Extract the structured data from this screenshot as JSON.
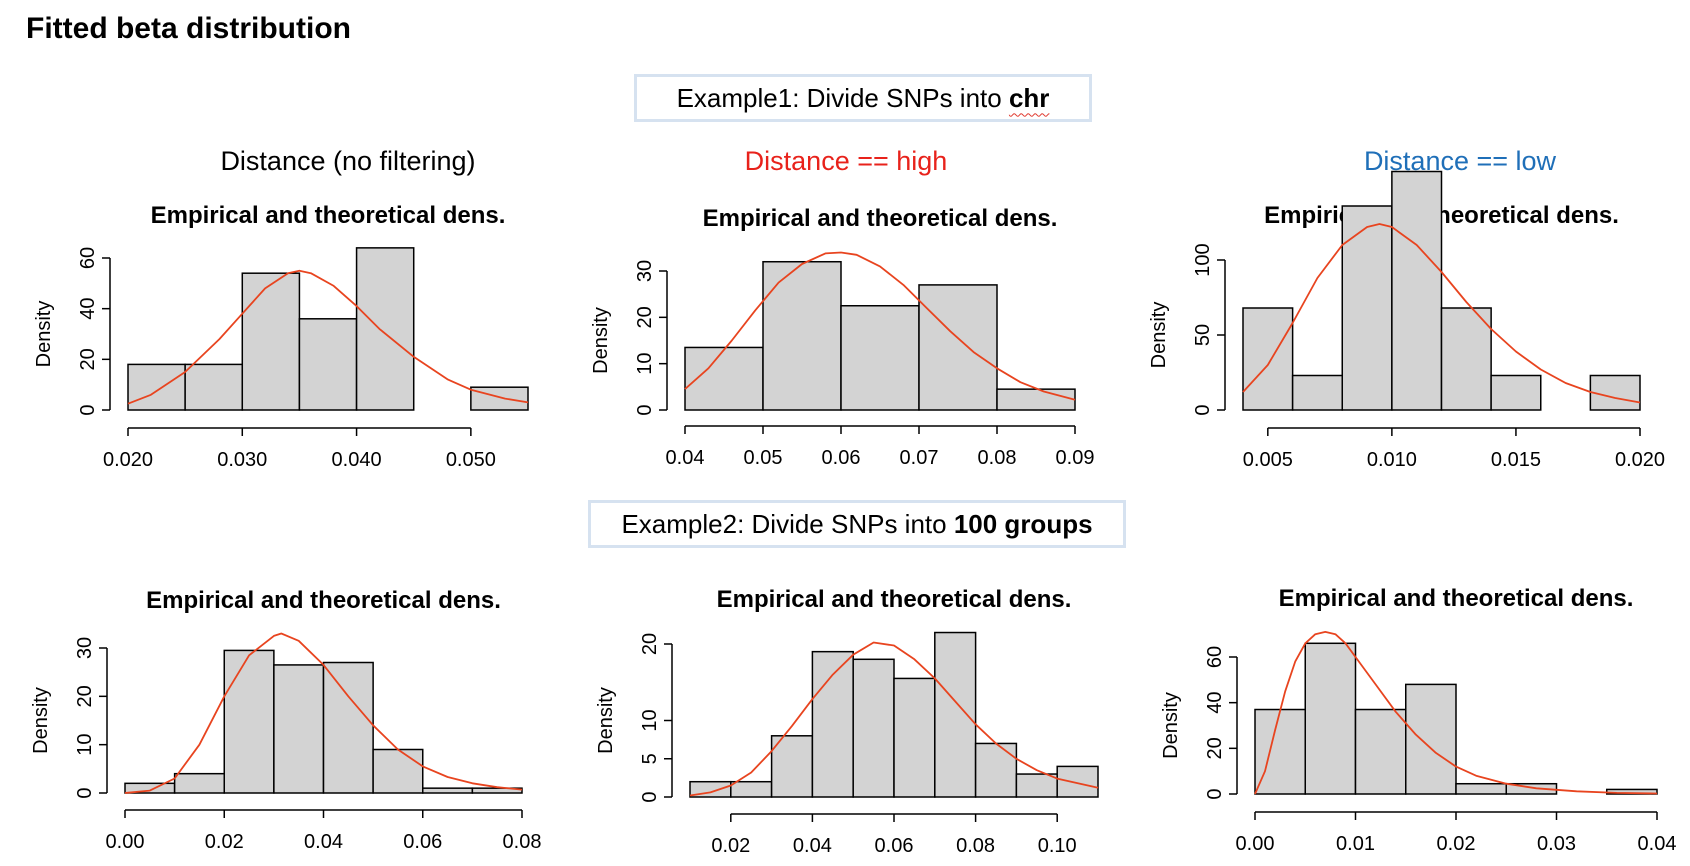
{
  "page": {
    "title": "Fitted beta distribution"
  },
  "example1": {
    "prefix": "Example1: Divide SNPs into ",
    "emphasis": "chr"
  },
  "example2": {
    "prefix": "Example2: Divide SNPs into ",
    "emphasis": "100 groups"
  },
  "columns": [
    {
      "label": "Distance (no filtering)",
      "color": "#000000"
    },
    {
      "label": "Distance == high",
      "color": "#e8221b"
    },
    {
      "label": "Distance == low",
      "color": "#1f6fb8"
    }
  ],
  "colors": {
    "bar_fill": "#d3d3d3",
    "bar_stroke": "#000000",
    "curve": "#e8441f"
  },
  "chart_data": [
    {
      "type": "bar",
      "title": "Empirical and theoretical dens.",
      "ylabel": "Density",
      "xlabel": "",
      "xlim": [
        0.02,
        0.055
      ],
      "ylim": [
        0,
        60
      ],
      "bins": [
        [
          0.02,
          0.025,
          18
        ],
        [
          0.025,
          0.03,
          18
        ],
        [
          0.03,
          0.035,
          54
        ],
        [
          0.035,
          0.04,
          36
        ],
        [
          0.04,
          0.045,
          64
        ],
        [
          0.045,
          0.05,
          0
        ],
        [
          0.05,
          0.055,
          9
        ]
      ],
      "xticks": [
        0.02,
        0.03,
        0.04,
        0.05
      ],
      "xtick_labels": [
        "0.020",
        "0.030",
        "0.040",
        "0.050"
      ],
      "yticks": [
        0,
        20,
        40,
        60
      ],
      "ytick_labels": [
        "0",
        "20",
        "40",
        "60"
      ],
      "curve": [
        [
          0.02,
          2.5
        ],
        [
          0.022,
          6
        ],
        [
          0.025,
          15
        ],
        [
          0.028,
          28
        ],
        [
          0.03,
          38
        ],
        [
          0.032,
          48
        ],
        [
          0.034,
          54
        ],
        [
          0.035,
          55
        ],
        [
          0.036,
          54
        ],
        [
          0.038,
          49
        ],
        [
          0.04,
          41
        ],
        [
          0.042,
          32
        ],
        [
          0.045,
          21
        ],
        [
          0.048,
          12
        ],
        [
          0.05,
          8
        ],
        [
          0.053,
          4.5
        ],
        [
          0.055,
          3
        ]
      ]
    },
    {
      "type": "bar",
      "title": "Empirical and theoretical dens.",
      "ylabel": "Density",
      "xlabel": "",
      "xlim": [
        0.04,
        0.09
      ],
      "ylim": [
        0,
        30
      ],
      "bins": [
        [
          0.04,
          0.05,
          13.5
        ],
        [
          0.05,
          0.06,
          32
        ],
        [
          0.06,
          0.07,
          22.5
        ],
        [
          0.07,
          0.08,
          27
        ],
        [
          0.08,
          0.09,
          4.5
        ]
      ],
      "xticks": [
        0.04,
        0.05,
        0.06,
        0.07,
        0.08,
        0.09
      ],
      "xtick_labels": [
        "0.04",
        "0.05",
        "0.06",
        "0.07",
        "0.08",
        "0.09"
      ],
      "yticks": [
        0,
        10,
        20,
        30
      ],
      "ytick_labels": [
        "0",
        "10",
        "20",
        "30"
      ],
      "curve": [
        [
          0.04,
          4.5
        ],
        [
          0.043,
          9
        ],
        [
          0.046,
          15
        ],
        [
          0.049,
          21.5
        ],
        [
          0.052,
          27.5
        ],
        [
          0.055,
          31.5
        ],
        [
          0.058,
          33.8
        ],
        [
          0.06,
          34
        ],
        [
          0.062,
          33.5
        ],
        [
          0.065,
          31
        ],
        [
          0.068,
          27
        ],
        [
          0.071,
          22
        ],
        [
          0.074,
          17
        ],
        [
          0.077,
          12.5
        ],
        [
          0.08,
          9
        ],
        [
          0.083,
          6
        ],
        [
          0.086,
          4
        ],
        [
          0.09,
          2.2
        ]
      ]
    },
    {
      "type": "bar",
      "title": "Empirical and theoretical dens.",
      "ylabel": "Density",
      "xlabel": "",
      "xlim": [
        0.004,
        0.02
      ],
      "ylim": [
        0,
        100
      ],
      "bins": [
        [
          0.004,
          0.006,
          68
        ],
        [
          0.006,
          0.008,
          23
        ],
        [
          0.008,
          0.01,
          136
        ],
        [
          0.01,
          0.012,
          159
        ],
        [
          0.012,
          0.014,
          68
        ],
        [
          0.014,
          0.016,
          23
        ],
        [
          0.016,
          0.018,
          0
        ],
        [
          0.018,
          0.02,
          23
        ]
      ],
      "xticks": [
        0.005,
        0.01,
        0.015,
        0.02
      ],
      "xtick_labels": [
        "0.005",
        "0.010",
        "0.015",
        "0.020"
      ],
      "yticks": [
        0,
        50,
        100
      ],
      "ytick_labels": [
        "0",
        "50",
        "100"
      ],
      "curve": [
        [
          0.004,
          12
        ],
        [
          0.005,
          30
        ],
        [
          0.006,
          58
        ],
        [
          0.007,
          88
        ],
        [
          0.008,
          110
        ],
        [
          0.009,
          122
        ],
        [
          0.0095,
          124
        ],
        [
          0.01,
          122
        ],
        [
          0.011,
          110
        ],
        [
          0.012,
          92
        ],
        [
          0.013,
          72
        ],
        [
          0.014,
          54
        ],
        [
          0.015,
          39
        ],
        [
          0.016,
          27
        ],
        [
          0.017,
          18
        ],
        [
          0.018,
          12
        ],
        [
          0.019,
          8
        ],
        [
          0.02,
          5
        ]
      ]
    },
    {
      "type": "bar",
      "title": "Empirical and theoretical dens.",
      "ylabel": "Density",
      "xlabel": "",
      "xlim": [
        0.0,
        0.08
      ],
      "ylim": [
        0,
        30
      ],
      "bins": [
        [
          0.0,
          0.01,
          2
        ],
        [
          0.01,
          0.02,
          4
        ],
        [
          0.02,
          0.03,
          29.5
        ],
        [
          0.03,
          0.04,
          26.5
        ],
        [
          0.04,
          0.05,
          27
        ],
        [
          0.05,
          0.06,
          9
        ],
        [
          0.06,
          0.07,
          1
        ],
        [
          0.07,
          0.08,
          1
        ]
      ],
      "xticks": [
        0,
        0.02,
        0.04,
        0.06,
        0.08
      ],
      "xtick_labels": [
        "0.00",
        "0.02",
        "0.04",
        "0.06",
        "0.08"
      ],
      "yticks": [
        0,
        10,
        20,
        30
      ],
      "ytick_labels": [
        "0",
        "10",
        "20",
        "30"
      ],
      "curve": [
        [
          0.0,
          0
        ],
        [
          0.005,
          0.5
        ],
        [
          0.01,
          3
        ],
        [
          0.015,
          10
        ],
        [
          0.02,
          20
        ],
        [
          0.025,
          28.5
        ],
        [
          0.03,
          32.5
        ],
        [
          0.0315,
          33
        ],
        [
          0.035,
          31.5
        ],
        [
          0.04,
          26.5
        ],
        [
          0.045,
          20
        ],
        [
          0.05,
          14
        ],
        [
          0.055,
          9
        ],
        [
          0.06,
          5.5
        ],
        [
          0.065,
          3.3
        ],
        [
          0.07,
          2
        ],
        [
          0.075,
          1.2
        ],
        [
          0.08,
          0.7
        ]
      ]
    },
    {
      "type": "bar",
      "title": "Empirical and theoretical dens.",
      "ylabel": "Density",
      "xlabel": "",
      "xlim": [
        0.01,
        0.11
      ],
      "ylim": [
        0,
        20
      ],
      "bins": [
        [
          0.01,
          0.02,
          2
        ],
        [
          0.02,
          0.03,
          2
        ],
        [
          0.03,
          0.04,
          8
        ],
        [
          0.04,
          0.05,
          19
        ],
        [
          0.05,
          0.06,
          18
        ],
        [
          0.06,
          0.07,
          15.5
        ],
        [
          0.07,
          0.08,
          21.5
        ],
        [
          0.08,
          0.09,
          7
        ],
        [
          0.09,
          0.1,
          3
        ],
        [
          0.1,
          0.11,
          4
        ]
      ],
      "xticks": [
        0.02,
        0.04,
        0.06,
        0.08,
        0.1
      ],
      "xtick_labels": [
        "0.02",
        "0.04",
        "0.06",
        "0.08",
        "0.10"
      ],
      "yticks": [
        0,
        5,
        10,
        20
      ],
      "ytick_labels": [
        "0",
        "5",
        "10",
        "20"
      ],
      "curve": [
        [
          0.01,
          0.2
        ],
        [
          0.015,
          0.6
        ],
        [
          0.02,
          1.5
        ],
        [
          0.025,
          3.2
        ],
        [
          0.03,
          6
        ],
        [
          0.035,
          9.3
        ],
        [
          0.04,
          12.8
        ],
        [
          0.045,
          16
        ],
        [
          0.05,
          18.6
        ],
        [
          0.055,
          20.2
        ],
        [
          0.06,
          19.8
        ],
        [
          0.065,
          18
        ],
        [
          0.07,
          15.5
        ],
        [
          0.075,
          12.5
        ],
        [
          0.08,
          9.5
        ],
        [
          0.085,
          7
        ],
        [
          0.09,
          5
        ],
        [
          0.095,
          3.5
        ],
        [
          0.1,
          2.4
        ],
        [
          0.11,
          1.2
        ]
      ]
    },
    {
      "type": "bar",
      "title": "Empirical and theoretical dens.",
      "ylabel": "Density",
      "xlabel": "",
      "xlim": [
        0.0,
        0.04
      ],
      "ylim": [
        0,
        60
      ],
      "bins": [
        [
          0.0,
          0.005,
          37
        ],
        [
          0.005,
          0.01,
          66
        ],
        [
          0.01,
          0.015,
          37
        ],
        [
          0.015,
          0.02,
          48
        ],
        [
          0.02,
          0.025,
          4.5
        ],
        [
          0.025,
          0.03,
          4.5
        ],
        [
          0.03,
          0.035,
          0
        ],
        [
          0.035,
          0.04,
          2
        ]
      ],
      "xticks": [
        0,
        0.01,
        0.02,
        0.03,
        0.04
      ],
      "xtick_labels": [
        "0.00",
        "0.01",
        "0.02",
        "0.03",
        "0.04"
      ],
      "yticks": [
        0,
        20,
        40,
        60
      ],
      "ytick_labels": [
        "0",
        "20",
        "40",
        "60"
      ],
      "curve": [
        [
          0.0,
          0
        ],
        [
          0.001,
          10
        ],
        [
          0.002,
          28
        ],
        [
          0.003,
          45
        ],
        [
          0.004,
          58
        ],
        [
          0.005,
          66
        ],
        [
          0.006,
          70
        ],
        [
          0.007,
          71
        ],
        [
          0.008,
          70
        ],
        [
          0.009,
          66
        ],
        [
          0.01,
          60
        ],
        [
          0.012,
          48
        ],
        [
          0.014,
          36
        ],
        [
          0.016,
          26
        ],
        [
          0.018,
          18
        ],
        [
          0.02,
          12
        ],
        [
          0.022,
          8
        ],
        [
          0.025,
          4.5
        ],
        [
          0.028,
          2.5
        ],
        [
          0.032,
          1.2
        ],
        [
          0.036,
          0.5
        ],
        [
          0.04,
          0.2
        ]
      ]
    }
  ]
}
